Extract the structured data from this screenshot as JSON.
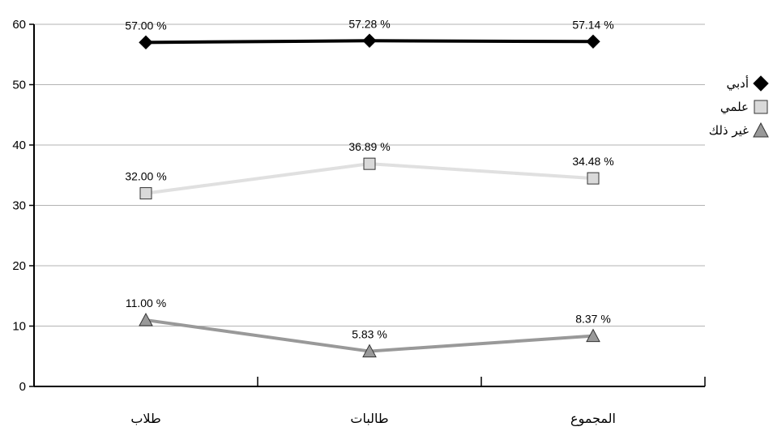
{
  "chart_data": {
    "type": "line",
    "categories": [
      "طلاب",
      "طالبات",
      "المجموع"
    ],
    "ylim": [
      0,
      60
    ],
    "yticks": [
      "0",
      "10",
      "20",
      "30",
      "40",
      "50",
      "60"
    ],
    "grid": true,
    "legend_position": "right",
    "series": [
      {
        "name": "أدبي",
        "values": [
          57.0,
          57.28,
          57.14
        ],
        "labels": [
          "57.00 %",
          "57.28 %",
          "57.14 %"
        ],
        "color": "#000000",
        "marker": "diamond",
        "marker_fill": "#000000"
      },
      {
        "name": "علمي",
        "values": [
          32.0,
          36.89,
          34.48
        ],
        "labels": [
          "32.00 %",
          "36.89 %",
          "34.48 %"
        ],
        "color": "#e0e0e0",
        "marker": "square",
        "marker_fill": "#d9d9d9"
      },
      {
        "name": "غير ذلك",
        "values": [
          11.0,
          5.83,
          8.37
        ],
        "labels": [
          "11.00 %",
          "5.83 %",
          "8.37 %"
        ],
        "color": "#999999",
        "marker": "triangle",
        "marker_fill": "#999999"
      }
    ]
  }
}
